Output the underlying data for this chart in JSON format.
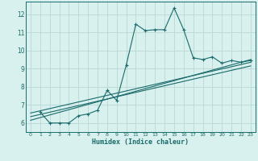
{
  "xlabel": "Humidex (Indice chaleur)",
  "bg_color": "#d8f0ee",
  "line_color": "#1a6b6b",
  "grid_color": "#b8d8d4",
  "text_color": "#1a6b6b",
  "xlim": [
    -0.5,
    23.5
  ],
  "ylim": [
    5.5,
    12.7
  ],
  "xticks": [
    0,
    1,
    2,
    3,
    4,
    5,
    6,
    7,
    8,
    9,
    10,
    11,
    12,
    13,
    14,
    15,
    16,
    17,
    18,
    19,
    20,
    21,
    22,
    23
  ],
  "yticks": [
    6,
    7,
    8,
    9,
    10,
    11,
    12
  ],
  "series1_x": [
    1,
    2,
    3,
    4,
    5,
    6,
    7,
    8,
    9,
    10,
    11,
    12,
    13,
    14,
    15,
    16,
    17,
    18,
    19,
    20,
    21,
    22,
    23
  ],
  "series1_y": [
    6.6,
    6.0,
    6.0,
    6.0,
    6.4,
    6.5,
    6.7,
    7.8,
    7.25,
    9.2,
    11.45,
    11.1,
    11.15,
    11.15,
    12.35,
    11.15,
    9.6,
    9.5,
    9.65,
    9.3,
    9.45,
    9.35,
    9.45
  ],
  "line2_x": [
    0,
    23
  ],
  "line2_y": [
    6.55,
    9.35
  ],
  "line3_x": [
    0,
    23
  ],
  "line3_y": [
    6.35,
    9.15
  ],
  "line4_x": [
    0,
    23
  ],
  "line4_y": [
    6.15,
    9.5
  ]
}
